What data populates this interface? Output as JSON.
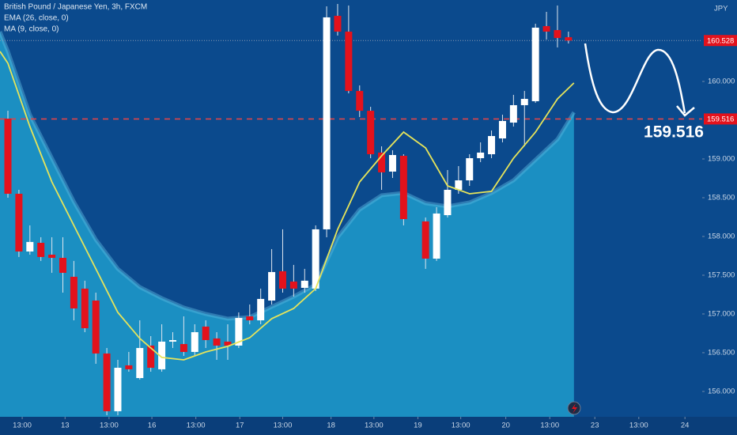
{
  "chart_data": {
    "type": "candlestick",
    "title": "British Pound / Japanese Yen, 3h, FXCM",
    "y_label": "JPY",
    "up_color": "#ffffff",
    "down_color": "#e3121c",
    "xlim": [
      -0.72,
      63.17
    ],
    "ylim": [
      155.673,
      161.051
    ],
    "grid": false,
    "xticks": [
      {
        "value": 1.3,
        "label": "13:00"
      },
      {
        "value": 5.2,
        "label": "13"
      },
      {
        "value": 9.2,
        "label": "13:00"
      },
      {
        "value": 13.1,
        "label": "16"
      },
      {
        "value": 17.1,
        "label": "13:00"
      },
      {
        "value": 21.1,
        "label": "17"
      },
      {
        "value": 25,
        "label": "13:00"
      },
      {
        "value": 29.4,
        "label": "18"
      },
      {
        "value": 33.3,
        "label": "13:00"
      },
      {
        "value": 37.3,
        "label": "19"
      },
      {
        "value": 41.2,
        "label": "13:00"
      },
      {
        "value": 45.3,
        "label": "20"
      },
      {
        "value": 49.3,
        "label": "13:00"
      },
      {
        "value": 53.4,
        "label": "23"
      },
      {
        "value": 57.4,
        "label": "13:00"
      },
      {
        "value": 61.6,
        "label": "24"
      }
    ],
    "yticks": [
      {
        "value": 156,
        "label": "156.000"
      },
      {
        "value": 156.5,
        "label": "156.500"
      },
      {
        "value": 157,
        "label": "157.000"
      },
      {
        "value": 157.5,
        "label": "157.500"
      },
      {
        "value": 158,
        "label": "158.000"
      },
      {
        "value": 158.5,
        "label": "158.500"
      },
      {
        "value": 159,
        "label": "159.000"
      },
      {
        "value": 160,
        "label": "160.000"
      }
    ],
    "x": [
      0,
      1,
      2,
      3,
      4,
      5,
      6,
      7,
      8,
      9,
      10,
      11,
      12,
      13,
      14,
      15,
      16,
      17,
      18,
      19,
      20,
      21,
      22,
      23,
      24,
      25,
      26,
      27,
      28,
      29,
      30,
      31,
      32,
      33,
      34,
      35,
      36,
      38,
      39,
      40,
      41,
      42,
      43,
      44,
      45,
      46,
      47,
      48,
      49,
      50,
      51
    ],
    "open": [
      159.52,
      158.551,
      157.806,
      157.918,
      157.765,
      157.724,
      157.48,
      157.327,
      157.173,
      156.49,
      155.745,
      156.337,
      156.173,
      156.592,
      156.286,
      156.643,
      156.612,
      156.51,
      156.837,
      156.684,
      156.643,
      156.592,
      156.969,
      156.918,
      157.173,
      157.551,
      157.418,
      157.337,
      157.327,
      158.092,
      160.847,
      160.643,
      159.878,
      159.622,
      159.082,
      158.837,
      159.041,
      158.194,
      157.714,
      158.275,
      158.602,
      158.724,
      159.01,
      159.061,
      159.265,
      159.469,
      159.694,
      159.745,
      160.714,
      160.663,
      160.571
    ],
    "high": [
      159.622,
      158.602,
      158.143,
      157.99,
      157.99,
      157.99,
      157.684,
      157.429,
      157.275,
      156.561,
      156.408,
      156.51,
      156.918,
      156.714,
      156.867,
      156.765,
      156.969,
      156.867,
      156.918,
      156.765,
      156.867,
      157.02,
      157.122,
      157.327,
      157.837,
      158.092,
      157.633,
      157.582,
      158.143,
      160.969,
      161.0,
      160.98,
      159.949,
      159.673,
      159.163,
      159.112,
      159.061,
      158.245,
      158.378,
      158.857,
      158.908,
      159.061,
      159.214,
      159.367,
      159.571,
      159.827,
      159.878,
      160.745,
      160.898,
      160.98,
      160.643
    ],
    "low": [
      158.5,
      157.735,
      157.765,
      157.684,
      157.531,
      157.275,
      156.918,
      156.765,
      156.357,
      155.694,
      155.694,
      156.255,
      156.153,
      156.255,
      156.255,
      156.561,
      156.459,
      156.459,
      156.561,
      156.408,
      156.408,
      156.561,
      156.867,
      156.867,
      157.122,
      157.275,
      157.224,
      157.275,
      157.296,
      157.99,
      160.592,
      159.847,
      159.541,
      159.01,
      158.602,
      158.755,
      158.143,
      157.582,
      157.684,
      158.245,
      158.551,
      158.653,
      158.959,
      159.01,
      159.214,
      159.418,
      159.163,
      159.724,
      160.541,
      160.439,
      160.49
    ],
    "close": [
      158.551,
      157.806,
      157.929,
      157.735,
      157.724,
      157.531,
      157.071,
      156.816,
      156.49,
      155.745,
      156.306,
      156.286,
      156.561,
      156.306,
      156.643,
      156.663,
      156.51,
      156.765,
      156.663,
      156.592,
      156.592,
      156.949,
      156.918,
      157.194,
      157.541,
      157.327,
      157.327,
      157.429,
      158.092,
      160.827,
      160.643,
      159.878,
      159.622,
      159.061,
      158.827,
      159.051,
      158.224,
      157.714,
      158.296,
      158.602,
      158.724,
      159.01,
      159.082,
      159.296,
      159.49,
      159.694,
      159.775,
      160.694,
      160.643,
      160.561,
      160.528
    ],
    "series": [
      {
        "name": "EMA (26, close, 0)",
        "type": "area",
        "color": "#1b8fc2",
        "edge_color": "#5cb8e0",
        "x": [
          -0.72,
          0,
          2,
          4,
          6,
          8,
          10,
          12,
          14,
          16,
          18,
          20,
          22,
          24,
          26,
          28,
          30,
          32,
          34,
          36,
          38,
          40,
          42,
          44,
          46,
          48,
          50,
          51.5
        ],
        "values": [
          160.643,
          160.388,
          159.571,
          159.01,
          158.449,
          157.959,
          157.582,
          157.347,
          157.204,
          157.082,
          157.0,
          156.939,
          156.959,
          157.092,
          157.224,
          157.378,
          157.99,
          158.347,
          158.531,
          158.561,
          158.429,
          158.388,
          158.439,
          158.561,
          158.724,
          158.99,
          159.255,
          159.602
        ]
      },
      {
        "name": "MA (9, close, 0)",
        "type": "line",
        "color": "#e6e45a",
        "x": [
          -0.72,
          0,
          2,
          4,
          6,
          8,
          10,
          12,
          14,
          16,
          18,
          20,
          22,
          24,
          26,
          28,
          30,
          32,
          34,
          36,
          38,
          40,
          42,
          44,
          46,
          48,
          50,
          51.5
        ],
        "values": [
          160.388,
          160.235,
          159.418,
          158.704,
          158.143,
          157.582,
          157.02,
          156.684,
          156.439,
          156.408,
          156.51,
          156.582,
          156.694,
          156.939,
          157.071,
          157.327,
          158.092,
          158.704,
          159.041,
          159.347,
          159.143,
          158.653,
          158.551,
          158.582,
          159.01,
          159.347,
          159.775,
          159.98
        ]
      }
    ],
    "levels": [
      {
        "value": 160.528,
        "color": "#8a9bb3",
        "label_color": "#e3121c"
      },
      {
        "value": 159.516,
        "color": "#e0454a",
        "label_color": "#e3121c"
      }
    ]
  }
}
